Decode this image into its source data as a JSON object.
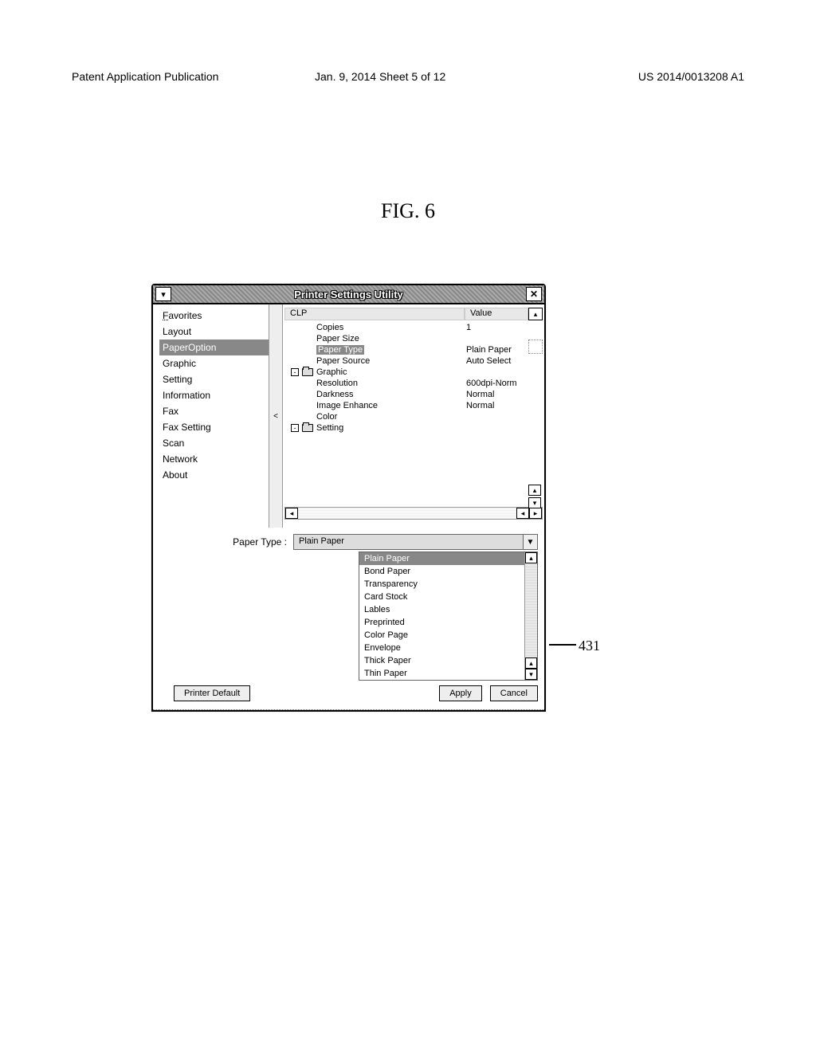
{
  "header": {
    "left": "Patent Application Publication",
    "center": "Jan. 9, 2014  Sheet 5 of 12",
    "right": "US 2014/0013208 A1"
  },
  "figure_label": "FIG. 6",
  "window": {
    "title": "Printer Settings Utility"
  },
  "sidebar": {
    "items": [
      {
        "label": "Favorites",
        "underline": true,
        "selected": false
      },
      {
        "label": "Layout",
        "underline": false,
        "selected": false
      },
      {
        "label": "PaperOption",
        "underline": false,
        "selected": true
      },
      {
        "label": "Graphic",
        "underline": false,
        "selected": false
      },
      {
        "label": "Setting",
        "underline": false,
        "selected": false
      },
      {
        "label": "Information",
        "underline": false,
        "selected": false
      },
      {
        "label": "Fax",
        "underline": false,
        "selected": false
      },
      {
        "label": "Fax Setting",
        "underline": false,
        "selected": false
      },
      {
        "label": "Scan",
        "underline": false,
        "selected": false
      },
      {
        "label": "Network",
        "underline": false,
        "selected": false
      },
      {
        "label": "About",
        "underline": false,
        "selected": false
      }
    ]
  },
  "tree": {
    "header_col1": "CLP",
    "header_col2": "Value",
    "rows": [
      {
        "label": "Copies",
        "value": "1",
        "indent": 1,
        "selected": false,
        "node": false
      },
      {
        "label": "Paper Size",
        "value": "",
        "indent": 1,
        "selected": false,
        "node": false
      },
      {
        "label": "Paper Type",
        "value": "Plain Paper",
        "indent": 1,
        "selected": true,
        "node": false
      },
      {
        "label": "Paper Source",
        "value": "Auto Select",
        "indent": 1,
        "selected": false,
        "node": false
      },
      {
        "label": "Graphic",
        "value": "",
        "indent": 0,
        "selected": false,
        "node": true
      },
      {
        "label": "Resolution",
        "value": "600dpi-Norm",
        "indent": 1,
        "selected": false,
        "node": false
      },
      {
        "label": "Darkness",
        "value": "Normal",
        "indent": 1,
        "selected": false,
        "node": false
      },
      {
        "label": "Image Enhance",
        "value": "Normal",
        "indent": 1,
        "selected": false,
        "node": false
      },
      {
        "label": "Color",
        "value": "",
        "indent": 1,
        "selected": false,
        "node": false
      },
      {
        "label": "Setting",
        "value": "",
        "indent": 0,
        "selected": false,
        "node": true
      }
    ]
  },
  "paper_type": {
    "label": "Paper Type :",
    "selected": "Plain Paper",
    "options": [
      {
        "label": "Plain Paper",
        "selected": true
      },
      {
        "label": "Bond Paper",
        "selected": false
      },
      {
        "label": "Transparency",
        "selected": false
      },
      {
        "label": "Card Stock",
        "selected": false
      },
      {
        "label": "Lables",
        "selected": false
      },
      {
        "label": "Preprinted",
        "selected": false
      },
      {
        "label": "Color Page",
        "selected": false
      },
      {
        "label": "Envelope",
        "selected": false
      },
      {
        "label": "Thick Paper",
        "selected": false
      },
      {
        "label": "Thin Paper",
        "selected": false
      }
    ]
  },
  "buttons": {
    "printer_default": "Printer Default",
    "apply": "Apply",
    "cancel": "Cancel"
  },
  "callout": "431",
  "colors": {
    "selection_bg": "#888888",
    "selection_fg": "#ffffff",
    "window_bg": "#ffffff"
  }
}
